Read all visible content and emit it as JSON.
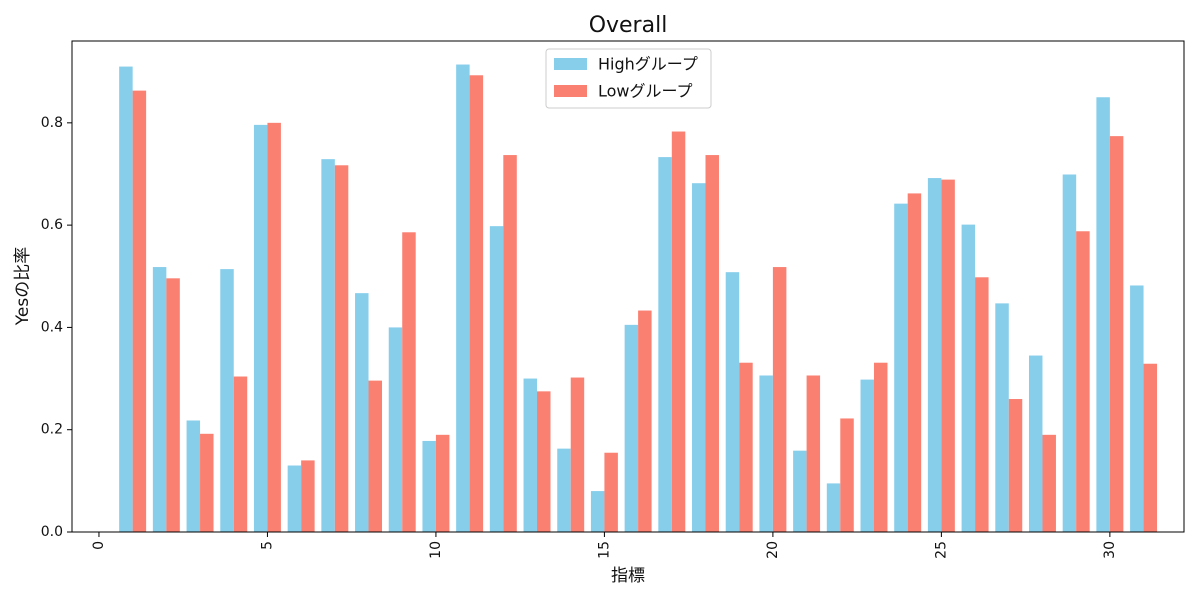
{
  "chart_data": {
    "type": "bar",
    "title": "Overall",
    "xlabel": "指標",
    "ylabel": "Yesの比率",
    "x": [
      1,
      2,
      3,
      4,
      5,
      6,
      7,
      8,
      9,
      10,
      11,
      12,
      13,
      14,
      15,
      16,
      17,
      18,
      19,
      20,
      21,
      22,
      23,
      24,
      25,
      26,
      27,
      28,
      29,
      30,
      31
    ],
    "xlim": [
      -0.8,
      32.2
    ],
    "ylim": [
      0,
      0.96
    ],
    "xticks": [
      0,
      5,
      10,
      15,
      20,
      25,
      30
    ],
    "xtick_labels": [
      "0",
      "5",
      "10",
      "15",
      "20",
      "25",
      "30"
    ],
    "xtick_rotation": "vertical",
    "yticks": [
      0.0,
      0.2,
      0.4,
      0.6,
      0.8
    ],
    "ytick_labels": [
      "0.0",
      "0.2",
      "0.4",
      "0.6",
      "0.8"
    ],
    "grid": false,
    "legend_position": "upper center",
    "series": [
      {
        "name": "Highグループ",
        "color": "#87CEEB",
        "values": [
          0.91,
          0.518,
          0.218,
          0.514,
          0.796,
          0.13,
          0.729,
          0.467,
          0.4,
          0.178,
          0.914,
          0.598,
          0.3,
          0.163,
          0.08,
          0.405,
          0.733,
          0.682,
          0.508,
          0.306,
          0.159,
          0.095,
          0.298,
          0.642,
          0.692,
          0.601,
          0.447,
          0.345,
          0.699,
          0.85,
          0.482
        ]
      },
      {
        "name": "Lowグループ",
        "color": "#FA8072",
        "values": [
          0.863,
          0.496,
          0.192,
          0.304,
          0.8,
          0.14,
          0.717,
          0.296,
          0.586,
          0.19,
          0.893,
          0.737,
          0.275,
          0.302,
          0.155,
          0.433,
          0.783,
          0.737,
          0.331,
          0.518,
          0.306,
          0.222,
          0.331,
          0.662,
          0.689,
          0.498,
          0.26,
          0.19,
          0.588,
          0.774,
          0.329
        ]
      }
    ]
  }
}
